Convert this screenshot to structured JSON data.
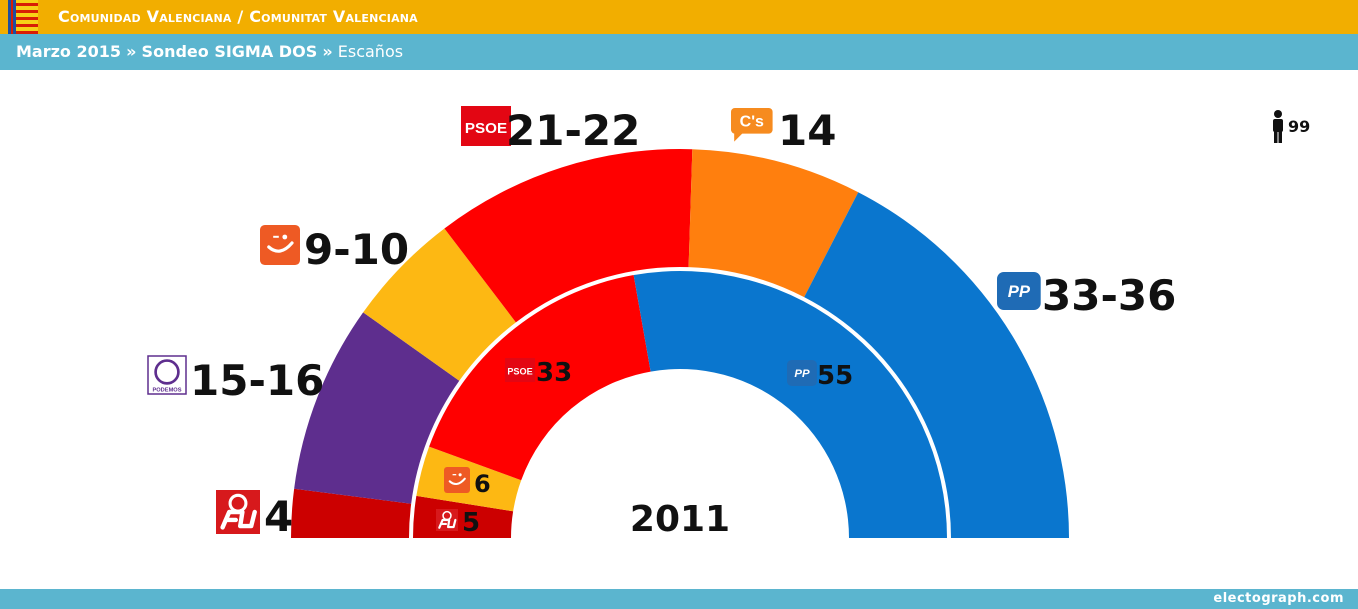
{
  "header": {
    "title": "Comunidad Valenciana / Comunitat Valenciana",
    "breadcrumb_date": "Marzo 2015",
    "breadcrumb_sep": "»",
    "breadcrumb_poll": "Sondeo SIGMA DOS",
    "breadcrumb_metric": "Escaños"
  },
  "footer": {
    "credit": "electograph.com"
  },
  "total_seats": {
    "value": "99",
    "icon": "person-icon"
  },
  "chart_data": [
    {
      "type": "semicircle",
      "ring": "outer",
      "series": [
        {
          "party": "EU",
          "label": "4",
          "value": 4,
          "color": "#CC0000",
          "logo": "eu-logo"
        },
        {
          "party": "Podemos",
          "label": "15-16",
          "value": 15.5,
          "color": "#5E2E8E",
          "logo": "podemos-logo",
          "logo_text": "PODEMOS"
        },
        {
          "party": "Compromís",
          "label": "9-10",
          "value": 9.5,
          "color": "#FDB813",
          "logo": "compromis-logo"
        },
        {
          "party": "PSOE",
          "label": "21-22",
          "value": 21.5,
          "color": "#FF0000",
          "logo": "psoe-logo",
          "logo_text": "PSOE"
        },
        {
          "party": "C's",
          "label": "14",
          "value": 14,
          "color": "#FF7F0E",
          "logo": "cs-logo",
          "logo_text": "C's"
        },
        {
          "party": "PP",
          "label": "33-36",
          "value": 34.5,
          "color": "#0A76CE",
          "logo": "pp-logo",
          "logo_text": "PP"
        }
      ]
    },
    {
      "type": "semicircle",
      "ring": "inner",
      "center_label": "2011",
      "series": [
        {
          "party": "EU",
          "label": "5",
          "value": 5,
          "color": "#CC0000",
          "logo": "eu-logo"
        },
        {
          "party": "Compromís",
          "label": "6",
          "value": 6,
          "color": "#FDB813",
          "logo": "compromis-logo"
        },
        {
          "party": "PSOE",
          "label": "33",
          "value": 33,
          "color": "#FF0000",
          "logo": "psoe-logo",
          "logo_text": "PSOE"
        },
        {
          "party": "PP",
          "label": "55",
          "value": 55,
          "color": "#0A76CE",
          "logo": "pp-logo",
          "logo_text": "PP"
        }
      ]
    }
  ]
}
